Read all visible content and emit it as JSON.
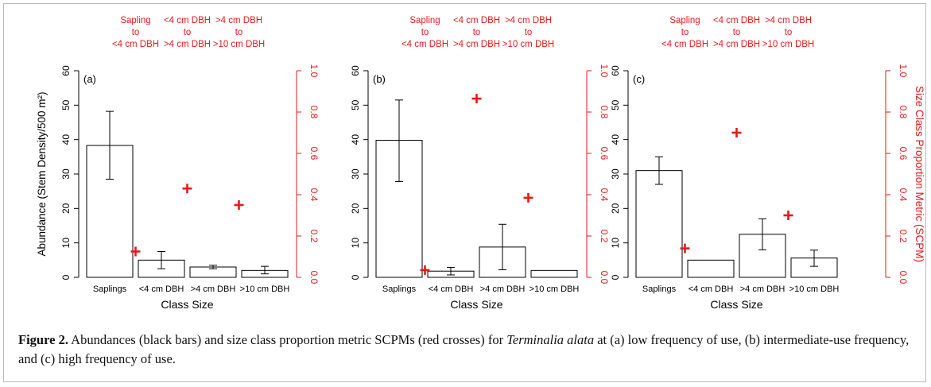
{
  "figure": {
    "caption_label": "Figure 2.",
    "caption_text_before_italic": " Abundances (black bars) and size class proportion metric SCPMs (red crosses) for ",
    "caption_italic": "Terminalia alata",
    "caption_text_after_italic": " at (a) low frequency of use, (b) intermediate-use frequency, and (c) high frequency of use."
  },
  "colors": {
    "bar_stroke": "#000000",
    "cross": "#e31a1c",
    "right_axis": "#e31a1c",
    "axis": "#000000"
  },
  "chart_data": [
    {
      "type": "bar",
      "panel_label": "(a)",
      "categories": [
        "Saplings",
        "<4 cm DBH",
        ">4 cm DBH",
        ">10 cm DBH"
      ],
      "values": [
        38.3,
        5.0,
        3.0,
        2.0
      ],
      "error_low": [
        28.5,
        2.5,
        2.5,
        1.0
      ],
      "error_high": [
        48.2,
        7.5,
        3.5,
        3.2
      ],
      "ylim": [
        0,
        60
      ],
      "yticks": [
        0,
        10,
        20,
        30,
        40,
        50,
        60
      ],
      "ylabel": "Abundance (Stem Density/500 m²)",
      "xlabel": "Class Size",
      "right_ylim": [
        0,
        1
      ],
      "right_yticks": [
        "0.0",
        "0.2",
        "0.4",
        "0.6",
        "0.8",
        "1.0"
      ],
      "right_ylabel": "",
      "transition_labels": [
        [
          "Sapling",
          "to",
          "<4 cm DBH"
        ],
        [
          "<4 cm DBH",
          "to",
          ">4 cm DBH"
        ],
        [
          ">4 cm DBH",
          "to",
          ">10 cm DBH"
        ]
      ],
      "scpm": [
        0.125,
        0.43,
        0.35
      ]
    },
    {
      "type": "bar",
      "panel_label": "(b)",
      "categories": [
        "Saplings",
        "<4 cm DBH",
        ">4 cm DBH",
        ">10 cm DBH"
      ],
      "values": [
        39.8,
        1.8,
        8.8,
        2.0
      ],
      "error_low": [
        27.8,
        0.7,
        2.2,
        2.0
      ],
      "error_high": [
        51.5,
        2.9,
        15.4,
        2.0
      ],
      "ylim": [
        0,
        60
      ],
      "yticks": [
        0,
        10,
        20,
        30,
        40,
        50,
        60
      ],
      "ylabel": "",
      "xlabel": "Class Size",
      "right_ylim": [
        0,
        1
      ],
      "right_yticks": [
        "0.0",
        "0.2",
        "0.4",
        "0.6",
        "0.8",
        "1.0"
      ],
      "right_ylabel": "",
      "transition_labels": [
        [
          "Sapling",
          "to",
          "<4 cm DBH"
        ],
        [
          "<4 cm DBH",
          "to",
          ">4 cm DBH"
        ],
        [
          ">4 cm DBH",
          "to",
          ">10 cm DBH"
        ]
      ],
      "scpm": [
        0.035,
        0.865,
        0.385
      ]
    },
    {
      "type": "bar",
      "panel_label": "(c)",
      "categories": [
        "Saplings",
        "<4 cm DBH",
        ">4 cm DBH",
        ">10 cm DBH"
      ],
      "values": [
        31.0,
        5.0,
        12.5,
        5.6
      ],
      "error_low": [
        27.0,
        5.0,
        8.0,
        3.2
      ],
      "error_high": [
        35.0,
        5.0,
        17.0,
        7.9
      ],
      "ylim": [
        0,
        60
      ],
      "yticks": [
        0,
        10,
        20,
        30,
        40,
        50,
        60
      ],
      "ylabel": "",
      "xlabel": "Class Size",
      "right_ylim": [
        0,
        1
      ],
      "right_yticks": [
        "0.0",
        "0.2",
        "0.4",
        "0.6",
        "0.8",
        "1.0"
      ],
      "right_ylabel": "Size Class Proportion Metric (SCPM)",
      "transition_labels": [
        [
          "Sapling",
          "to",
          "<4 cm DBH"
        ],
        [
          "<4 cm DBH",
          "to",
          ">4 cm DBH"
        ],
        [
          ">4 cm DBH",
          "to",
          ">10 cm DBH"
        ]
      ],
      "scpm": [
        0.14,
        0.7,
        0.3
      ]
    }
  ]
}
